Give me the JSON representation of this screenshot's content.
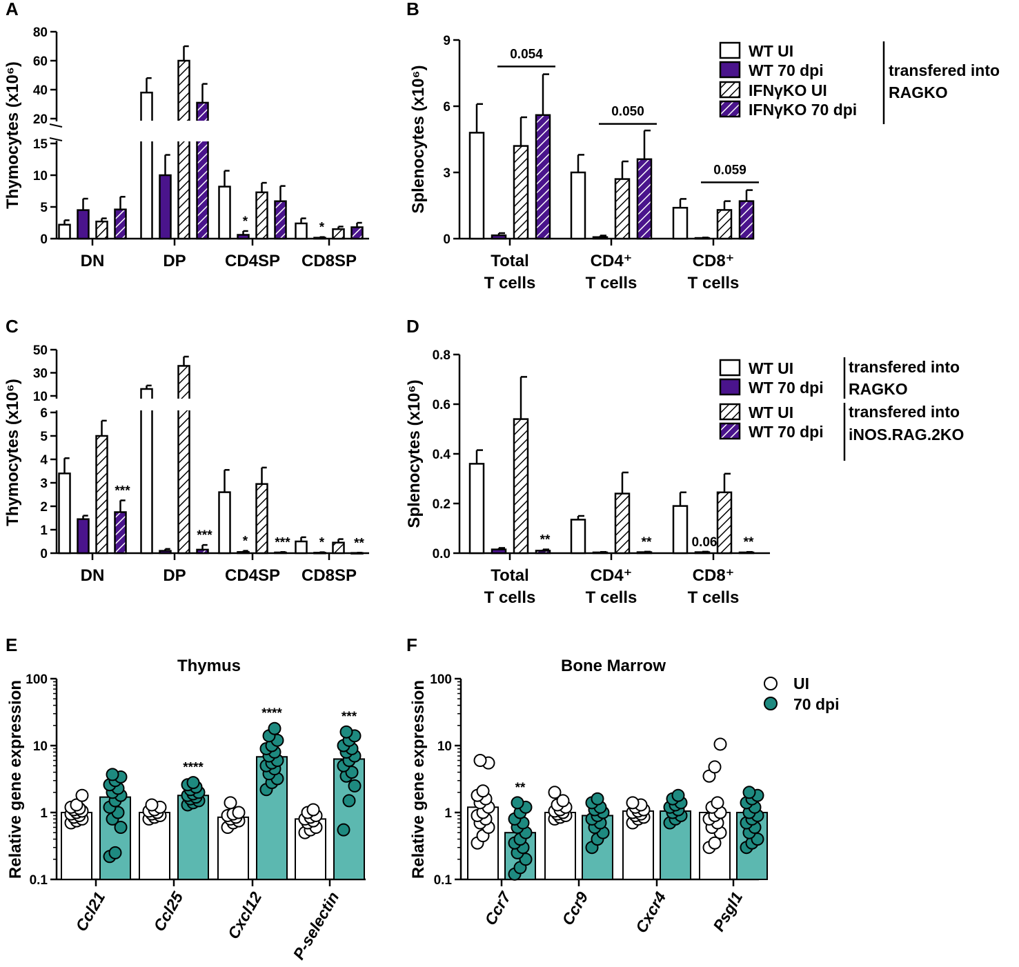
{
  "colors": {
    "wt_ui": "#ffffff",
    "wt_70": "#4a148c",
    "hatch_white": "#ffffff",
    "hatch_purple": "#4a148c",
    "teal": "#5cb8b0",
    "teal_dot": "#1e8a80"
  },
  "chart_data": [
    {
      "panel": "A",
      "type": "bar",
      "broken_axis": true,
      "ylabel": "Thymocytes (x10⁶)",
      "ylim_lower": [
        0,
        15
      ],
      "ylim_upper": [
        20,
        80
      ],
      "yticks_lower": [
        "0",
        "5",
        "10",
        "15"
      ],
      "yticks_upper": [
        "20",
        "40",
        "60",
        "80"
      ],
      "categories": [
        "DN",
        "DP",
        "CD4SP",
        "CD8SP"
      ],
      "series": [
        {
          "name": "WT UI",
          "style": "white",
          "values": [
            2.2,
            38,
            8.2,
            2.4
          ],
          "errors": [
            0.7,
            10,
            2.5,
            0.8
          ]
        },
        {
          "name": "WT 70 dpi",
          "style": "purple",
          "values": [
            4.5,
            10,
            0.6,
            0.15
          ],
          "errors": [
            1.8,
            3.2,
            0.6,
            0.1
          ]
        },
        {
          "name": "IFNγKO UI",
          "style": "hatch_white",
          "values": [
            2.7,
            60,
            7.3,
            1.5
          ],
          "errors": [
            0.5,
            10,
            1.5,
            0.4
          ]
        },
        {
          "name": "IFNγKO 70 dpi",
          "style": "hatch_purple",
          "values": [
            4.6,
            31,
            5.9,
            1.8
          ],
          "errors": [
            2.0,
            13,
            2.4,
            0.7
          ]
        }
      ],
      "annotations": [
        {
          "category": "CD4SP",
          "series": 1,
          "text": "*"
        },
        {
          "category": "CD8SP",
          "series": 1,
          "text": "*"
        }
      ]
    },
    {
      "panel": "B",
      "type": "bar",
      "ylabel": "Splenocytes (x10⁶)",
      "ylim": [
        0,
        9
      ],
      "yticks": [
        "0",
        "3",
        "6",
        "9"
      ],
      "categories": [
        [
          "Total",
          "T cells"
        ],
        [
          "CD4⁺",
          "T cells"
        ],
        [
          "CD8⁺",
          "T cells"
        ]
      ],
      "series": [
        {
          "name": "WT UI",
          "style": "white",
          "values": [
            4.8,
            3.0,
            1.4
          ],
          "errors": [
            1.3,
            0.8,
            0.4
          ]
        },
        {
          "name": "WT 70 dpi",
          "style": "purple",
          "values": [
            0.15,
            0.07,
            0.03
          ],
          "errors": [
            0.1,
            0.07,
            0.02
          ]
        },
        {
          "name": "IFNγKO UI",
          "style": "hatch_white",
          "values": [
            4.2,
            2.7,
            1.3
          ],
          "errors": [
            1.3,
            0.8,
            0.4
          ]
        },
        {
          "name": "IFNγKO 70 dpi",
          "style": "hatch_purple",
          "values": [
            5.6,
            3.6,
            1.7
          ],
          "errors": [
            1.85,
            1.3,
            0.5
          ]
        }
      ],
      "brackets": [
        {
          "category": "Total",
          "text": "0.054",
          "y": 7.8
        },
        {
          "category": "CD4",
          "text": "0.050",
          "y": 5.2
        },
        {
          "category": "CD8",
          "text": "0.059",
          "y": 2.55
        }
      ],
      "legend": {
        "items": [
          "WT UI",
          "WT 70 dpi",
          "IFNγKO UI",
          "IFNγKO 70 dpi"
        ],
        "group_label": [
          "transfered into",
          "RAGKO"
        ]
      }
    },
    {
      "panel": "C",
      "type": "bar",
      "broken_axis": true,
      "ylabel": "Thymocytes (x10⁶)",
      "ylim_lower": [
        0,
        6
      ],
      "ylim_upper": [
        10,
        50
      ],
      "yticks_lower": [
        "0",
        "1",
        "2",
        "3",
        "4",
        "5",
        "6"
      ],
      "yticks_upper": [
        "10",
        "30",
        "50"
      ],
      "categories": [
        "DN",
        "DP",
        "CD4SP",
        "CD8SP"
      ],
      "series": [
        {
          "name": "WT UI → RAGKO",
          "style": "white",
          "values": [
            3.4,
            16,
            2.6,
            0.5
          ],
          "errors": [
            0.65,
            3,
            0.95,
            0.18
          ]
        },
        {
          "name": "WT 70 dpi → RAGKO",
          "style": "purple",
          "values": [
            1.45,
            0.1,
            0.05,
            0.02
          ],
          "errors": [
            0.15,
            0.08,
            0.05,
            0.02
          ]
        },
        {
          "name": "WT UI → iNOS.RAG.2KO",
          "style": "hatch_white",
          "values": [
            5.0,
            36,
            2.95,
            0.45
          ],
          "errors": [
            0.65,
            8,
            0.7,
            0.15
          ]
        },
        {
          "name": "WT 70 dpi → iNOS.RAG.2KO",
          "style": "hatch_purple",
          "values": [
            1.75,
            0.15,
            0.03,
            0.01
          ],
          "errors": [
            0.5,
            0.2,
            0.02,
            0.01
          ]
        }
      ],
      "annotations": [
        {
          "category": "DN",
          "series": 3,
          "text": "***"
        },
        {
          "category": "DP",
          "series": 3,
          "text": "***"
        },
        {
          "category": "CD4SP",
          "series": 1,
          "text": "*"
        },
        {
          "category": "CD4SP",
          "series": 3,
          "text": "***"
        },
        {
          "category": "CD8SP",
          "series": 1,
          "text": "*"
        },
        {
          "category": "CD8SP",
          "series": 3,
          "text": "**"
        }
      ]
    },
    {
      "panel": "D",
      "type": "bar",
      "ylabel": "Splenocytes (x10⁶)",
      "ylim": [
        0,
        0.8
      ],
      "yticks": [
        "0.0",
        "0.2",
        "0.4",
        "0.6",
        "0.8"
      ],
      "categories": [
        [
          "Total",
          "T cells"
        ],
        [
          "CD4⁺",
          "T cells"
        ],
        [
          "CD8⁺",
          "T cells"
        ]
      ],
      "series": [
        {
          "name": "WT UI → RAGKO",
          "style": "white",
          "values": [
            0.36,
            0.135,
            0.19
          ],
          "errors": [
            0.055,
            0.015,
            0.055
          ]
        },
        {
          "name": "WT 70 dpi → RAGKO",
          "style": "purple",
          "values": [
            0.015,
            0.003,
            0.004
          ],
          "errors": [
            0.006,
            0.002,
            0.002
          ]
        },
        {
          "name": "WT UI → iNOS.RAG.2KO",
          "style": "hatch_white",
          "values": [
            0.54,
            0.24,
            0.245
          ],
          "errors": [
            0.17,
            0.085,
            0.075
          ]
        },
        {
          "name": "WT 70 dpi → iNOS.RAG.2KO",
          "style": "hatch_purple",
          "values": [
            0.01,
            0.004,
            0.003
          ],
          "errors": [
            0.005,
            0.002,
            0.002
          ]
        }
      ],
      "annotations": [
        {
          "category": "Total",
          "series": 3,
          "text": "**"
        },
        {
          "category": "CD4",
          "series": 3,
          "text": "**"
        },
        {
          "category": "CD8",
          "series": 1,
          "text": "0.06"
        },
        {
          "category": "CD8",
          "series": 3,
          "text": "**"
        }
      ],
      "legend": {
        "items": [
          "WT UI",
          "WT 70 dpi",
          "WT UI",
          "WT 70 dpi"
        ],
        "group_labels": [
          [
            "transfered into",
            "RAGKO"
          ],
          [
            "transfered into",
            "iNOS.RAG.2KO"
          ]
        ]
      }
    },
    {
      "panel": "E",
      "type": "bar_scatter_log",
      "title": "Thymus",
      "ylabel": "Relative gene expression",
      "yticks": [
        "0.1",
        "1",
        "10",
        "100"
      ],
      "ylim": [
        0.1,
        100
      ],
      "categories": [
        "Ccl21",
        "Ccl25",
        "Cxcl12",
        "P-selectin"
      ],
      "series": [
        {
          "name": "UI",
          "means": [
            1.0,
            1.0,
            0.85,
            0.8
          ],
          "points": [
            [
              0.7,
              0.75,
              0.8,
              0.85,
              0.9,
              0.95,
              1.0,
              1.05,
              1.1,
              1.15,
              1.2,
              1.3,
              1.8
            ],
            [
              0.8,
              0.85,
              0.9,
              0.95,
              1.0,
              1.05,
              1.1,
              1.2,
              1.3
            ],
            [
              0.6,
              0.7,
              0.75,
              0.8,
              0.85,
              0.9,
              0.95,
              1.0,
              1.4
            ],
            [
              0.5,
              0.55,
              0.6,
              0.7,
              0.75,
              0.8,
              0.85,
              0.9,
              1.0,
              1.1
            ]
          ]
        },
        {
          "name": "70 dpi",
          "means": [
            1.7,
            1.8,
            6.8,
            6.3
          ],
          "points": [
            [
              0.22,
              0.25,
              0.6,
              0.8,
              1.0,
              1.2,
              1.5,
              1.8,
              2.0,
              2.3,
              2.6,
              3.0,
              3.4,
              3.7
            ],
            [
              1.3,
              1.4,
              1.5,
              1.6,
              1.7,
              1.8,
              1.9,
              2.0,
              2.2,
              2.4,
              2.6,
              2.8
            ],
            [
              2.2,
              2.8,
              3.2,
              3.8,
              4.5,
              5.0,
              5.5,
              6.0,
              7.0,
              8.0,
              9.0,
              10.0,
              12.0,
              14.0,
              18.0
            ],
            [
              0.55,
              1.5,
              2.5,
              3.5,
              4.0,
              5.0,
              6.0,
              7.0,
              8.0,
              9.0,
              10.0,
              12.0,
              14.0,
              16.0
            ]
          ]
        }
      ],
      "annotations": [
        {
          "category": "Ccl25",
          "text": "****"
        },
        {
          "category": "Cxcl12",
          "text": "****"
        },
        {
          "category": "P-selectin",
          "text": "***"
        }
      ]
    },
    {
      "panel": "F",
      "type": "bar_scatter_log",
      "title": "Bone Marrow",
      "ylabel": "Relative gene expression",
      "yticks": [
        "0.1",
        "1",
        "10",
        "100"
      ],
      "ylim": [
        0.1,
        100
      ],
      "categories": [
        "Ccr7",
        "Ccr9",
        "Cxcr4",
        "Psgl1"
      ],
      "series": [
        {
          "name": "UI",
          "means": [
            1.2,
            1.0,
            1.05,
            1.0
          ],
          "points": [
            [
              0.35,
              0.45,
              0.6,
              0.7,
              0.8,
              0.9,
              1.0,
              1.2,
              1.4,
              1.6,
              1.8,
              2.1,
              5.5,
              6.0
            ],
            [
              0.8,
              0.85,
              0.9,
              0.95,
              1.0,
              1.05,
              1.1,
              1.2,
              1.3,
              1.5,
              2.0
            ],
            [
              0.7,
              0.8,
              0.85,
              0.9,
              0.95,
              1.0,
              1.05,
              1.1,
              1.2,
              1.3,
              1.4
            ],
            [
              0.3,
              0.35,
              0.5,
              0.6,
              0.7,
              0.8,
              0.9,
              1.0,
              1.2,
              1.4,
              3.5,
              4.8,
              10.5
            ]
          ]
        },
        {
          "name": "70 dpi",
          "means": [
            0.5,
            0.9,
            1.05,
            1.0
          ],
          "points": [
            [
              0.12,
              0.15,
              0.2,
              0.25,
              0.3,
              0.35,
              0.4,
              0.5,
              0.6,
              0.7,
              0.8,
              1.0,
              1.2,
              1.4
            ],
            [
              0.3,
              0.4,
              0.5,
              0.6,
              0.7,
              0.8,
              0.9,
              1.0,
              1.1,
              1.2,
              1.4,
              1.6
            ],
            [
              0.7,
              0.8,
              0.9,
              1.0,
              1.1,
              1.2,
              1.3,
              1.4,
              1.6,
              1.8
            ],
            [
              0.3,
              0.35,
              0.4,
              0.5,
              0.6,
              0.7,
              0.8,
              0.9,
              1.0,
              1.2,
              1.4,
              1.6,
              1.8,
              2.0
            ]
          ]
        }
      ],
      "annotations": [
        {
          "category": "Ccr7",
          "text": "**"
        }
      ],
      "legend": {
        "items": [
          "UI",
          "70 dpi"
        ]
      }
    }
  ]
}
